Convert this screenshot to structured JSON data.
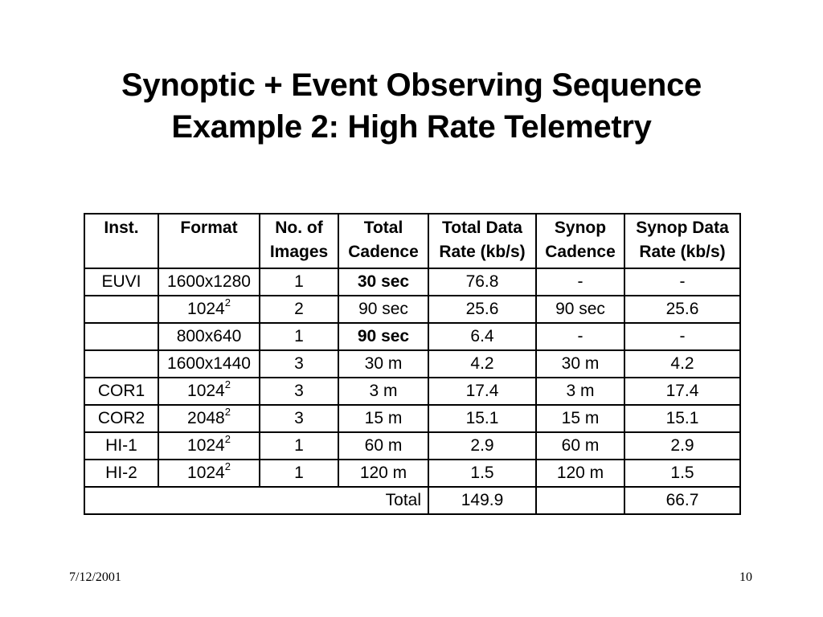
{
  "title": {
    "line1": "Synoptic + Event Observing Sequence",
    "line2": "Example 2: High Rate Telemetry"
  },
  "table": {
    "headers": [
      [
        "Inst.",
        ""
      ],
      [
        "Format",
        ""
      ],
      [
        "No. of",
        "Images"
      ],
      [
        "Total",
        "Cadence"
      ],
      [
        "Total Data",
        "Rate (kb/s)"
      ],
      [
        "Synop",
        "Cadence"
      ],
      [
        "Synop Data",
        "Rate (kb/s)"
      ]
    ],
    "rows": [
      {
        "inst": "EUVI",
        "format_base": "1600x1280",
        "format_exp": "",
        "images": "1",
        "total_cadence": "30 sec",
        "total_cadence_bold": true,
        "total_rate": "76.8",
        "synop_cadence": "-",
        "synop_rate": "-"
      },
      {
        "inst": "",
        "format_base": "1024",
        "format_exp": "2",
        "images": "2",
        "total_cadence": "90 sec",
        "total_cadence_bold": false,
        "total_rate": "25.6",
        "synop_cadence": "90 sec",
        "synop_rate": "25.6"
      },
      {
        "inst": "",
        "format_base": "800x640",
        "format_exp": "",
        "images": "1",
        "total_cadence": "90 sec",
        "total_cadence_bold": true,
        "total_rate": "6.4",
        "synop_cadence": "-",
        "synop_rate": "-"
      },
      {
        "inst": "",
        "format_base": "1600x1440",
        "format_exp": "",
        "images": "3",
        "total_cadence": "30 m",
        "total_cadence_bold": false,
        "total_rate": "4.2",
        "synop_cadence": "30 m",
        "synop_rate": "4.2"
      },
      {
        "inst": "COR1",
        "format_base": "1024",
        "format_exp": "2",
        "images": "3",
        "total_cadence": "3 m",
        "total_cadence_bold": false,
        "total_rate": "17.4",
        "synop_cadence": "3 m",
        "synop_rate": "17.4"
      },
      {
        "inst": "COR2",
        "format_base": "2048",
        "format_exp": "2",
        "images": "3",
        "total_cadence": "15 m",
        "total_cadence_bold": false,
        "total_rate": "15.1",
        "synop_cadence": "15 m",
        "synop_rate": "15.1"
      },
      {
        "inst": "HI-1",
        "format_base": "1024",
        "format_exp": "2",
        "images": "1",
        "total_cadence": "60 m",
        "total_cadence_bold": false,
        "total_rate": "2.9",
        "synop_cadence": "60 m",
        "synop_rate": "2.9"
      },
      {
        "inst": "HI-2",
        "format_base": "1024",
        "format_exp": "2",
        "images": "1",
        "total_cadence": "120 m",
        "total_cadence_bold": false,
        "total_rate": "1.5",
        "synop_cadence": "120 m",
        "synop_rate": "1.5"
      }
    ],
    "total_row": {
      "label": "Total",
      "total_rate": "149.9",
      "synop_cadence": "",
      "synop_rate": "66.7"
    }
  },
  "footer": {
    "date": "7/12/2001",
    "page_number": "10"
  }
}
